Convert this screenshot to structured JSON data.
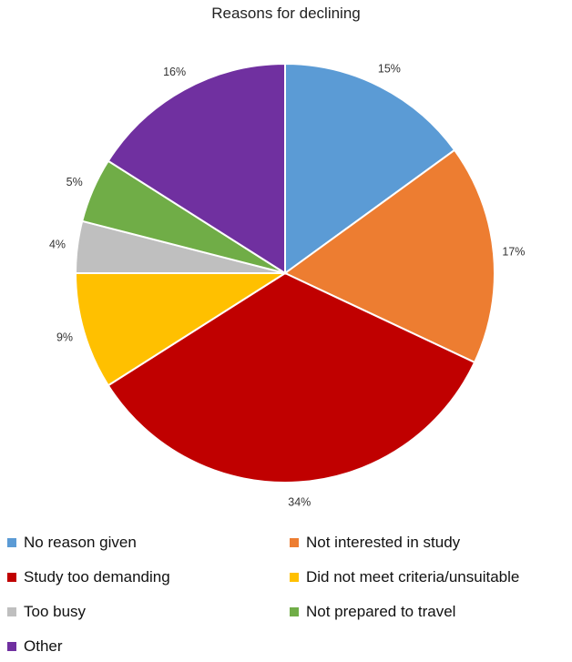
{
  "chart_data": {
    "type": "pie",
    "title": "Reasons for declining",
    "categories": [
      "No reason given",
      "Not interested in study",
      "Study too demanding",
      "Did not meet criteria/unsuitable",
      "Too busy",
      "Not prepared to travel",
      "Other"
    ],
    "values": [
      15,
      17,
      34,
      9,
      4,
      5,
      16
    ],
    "labels": [
      "15%",
      "17%",
      "34%",
      "9%",
      "4%",
      "5%",
      "16%"
    ],
    "colors": [
      "#5B9BD5",
      "#ED7D31",
      "#C00000",
      "#FFC000",
      "#BFBFBF",
      "#70AD47",
      "#7030A0"
    ],
    "legend_position": "bottom"
  }
}
